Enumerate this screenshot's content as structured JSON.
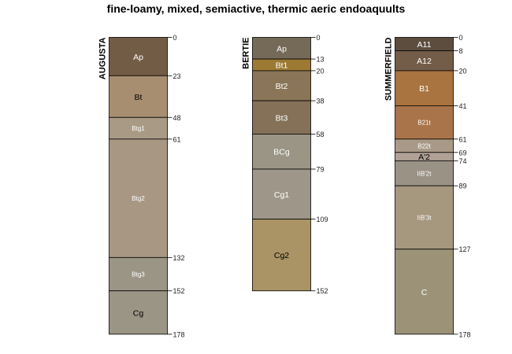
{
  "chart_data": {
    "type": "soil-profile",
    "title": "fine-loamy, mixed, semiactive, thermic aeric endoaquults",
    "depth_units": "cm",
    "profiles": [
      {
        "name": "AUGUSTA",
        "horizons": [
          {
            "name": "Ap",
            "top": 0,
            "bottom": 23,
            "color": "#735c45",
            "text_color": "#ffffff",
            "label_size": "large"
          },
          {
            "name": "Bt",
            "top": 23,
            "bottom": 48,
            "color": "#a88e70",
            "text_color": "#000000",
            "label_size": "large"
          },
          {
            "name": "Btg1",
            "top": 48,
            "bottom": 61,
            "color": "#a99a86",
            "text_color": "#ffffff",
            "label_size": "small"
          },
          {
            "name": "Btg2",
            "top": 61,
            "bottom": 132,
            "color": "#a89782",
            "text_color": "#ffffff",
            "label_size": "small"
          },
          {
            "name": "Btg3",
            "top": 132,
            "bottom": 152,
            "color": "#9a9585",
            "text_color": "#ffffff",
            "label_size": "small"
          },
          {
            "name": "Cg",
            "top": 152,
            "bottom": 178,
            "color": "#9a9585",
            "text_color": "#000000",
            "label_size": "large"
          }
        ],
        "depth_labels": [
          "0",
          "23",
          "48",
          "61",
          "132",
          "152",
          "178"
        ]
      },
      {
        "name": "BERTIE",
        "horizons": [
          {
            "name": "Ap",
            "top": 0,
            "bottom": 13,
            "color": "#756a58",
            "text_color": "#ffffff",
            "label_size": "large"
          },
          {
            "name": "Bt1",
            "top": 13,
            "bottom": 20,
            "color": "#9c7a33",
            "text_color": "#ffffff",
            "label_size": "large"
          },
          {
            "name": "Bt2",
            "top": 20,
            "bottom": 38,
            "color": "#8a7558",
            "text_color": "#ffffff",
            "label_size": "large"
          },
          {
            "name": "Bt3",
            "top": 38,
            "bottom": 58,
            "color": "#847158",
            "text_color": "#ffffff",
            "label_size": "large"
          },
          {
            "name": "BCg",
            "top": 58,
            "bottom": 79,
            "color": "#9a9585",
            "text_color": "#ffffff",
            "label_size": "large"
          },
          {
            "name": "Cg1",
            "top": 79,
            "bottom": 109,
            "color": "#9e9688",
            "text_color": "#ffffff",
            "label_size": "large"
          },
          {
            "name": "Cg2",
            "top": 109,
            "bottom": 152,
            "color": "#aa9465",
            "text_color": "#000000",
            "label_size": "large"
          }
        ],
        "depth_labels": [
          "0",
          "13",
          "20",
          "38",
          "58",
          "79",
          "109",
          "152"
        ]
      },
      {
        "name": "SUMMERFIELD",
        "horizons": [
          {
            "name": "A11",
            "top": 0,
            "bottom": 8,
            "color": "#5c4d3f",
            "text_color": "#ffffff",
            "label_size": "large"
          },
          {
            "name": "A12",
            "top": 8,
            "bottom": 20,
            "color": "#735c48",
            "text_color": "#ffffff",
            "label_size": "large"
          },
          {
            "name": "B1",
            "top": 20,
            "bottom": 41,
            "color": "#a9743f",
            "text_color": "#ffffff",
            "label_size": "large"
          },
          {
            "name": "B21t",
            "top": 41,
            "bottom": 61,
            "color": "#a9744a",
            "text_color": "#ffffff",
            "label_size": "small"
          },
          {
            "name": "B22t",
            "top": 61,
            "bottom": 69,
            "color": "#a99a88",
            "text_color": "#ffffff",
            "label_size": "small"
          },
          {
            "name": "A'2",
            "top": 69,
            "bottom": 74,
            "color": "#b0a095",
            "text_color": "#000000",
            "label_size": "large"
          },
          {
            "name": "IIB'2t",
            "top": 74,
            "bottom": 89,
            "color": "#9a9285",
            "text_color": "#ffffff",
            "label_size": "small"
          },
          {
            "name": "IIB'3t",
            "top": 89,
            "bottom": 127,
            "color": "#a6977f",
            "text_color": "#ffffff",
            "label_size": "small"
          },
          {
            "name": "C",
            "top": 127,
            "bottom": 178,
            "color": "#9c9278",
            "text_color": "#ffffff",
            "label_size": "large"
          }
        ],
        "depth_labels": [
          "0",
          "8",
          "20",
          "41",
          "61",
          "69",
          "74",
          "89",
          "127",
          "178"
        ]
      }
    ]
  }
}
